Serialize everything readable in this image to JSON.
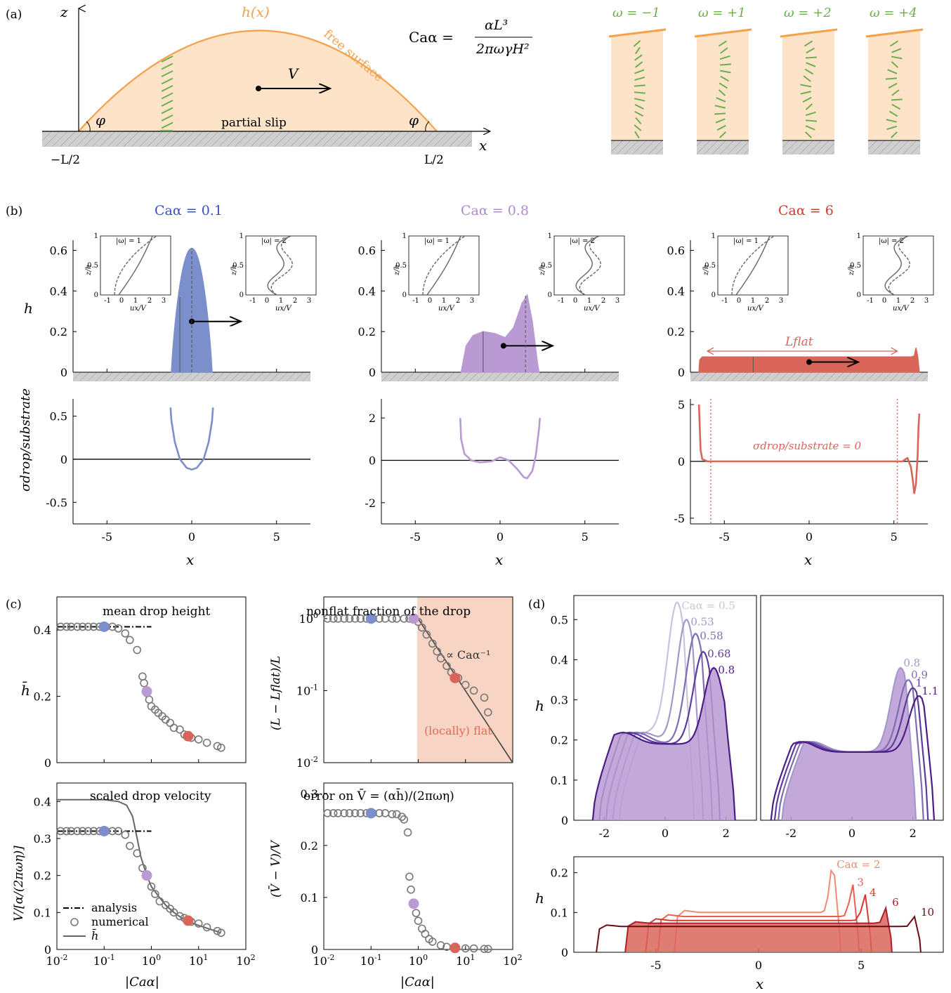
{
  "panel_labels": {
    "a": "(a)",
    "b": "(b)",
    "c": "(c)",
    "d": "(d)"
  },
  "colors": {
    "blue": "#7a8fcb",
    "purple": "#b99ad3",
    "red": "#d9655a",
    "orange": "#f5a04a",
    "fill": "#fde3c8",
    "green": "#6ab04c",
    "gray": "#666666",
    "darkpurple": "#4b1c84",
    "darkred": "#7a0b14"
  },
  "panel_a": {
    "z_label": "z",
    "x_label": "x",
    "h_label": "h(x)",
    "free_surface": "free surface",
    "V_label": "V",
    "slip_label": "partial slip",
    "phi": "φ",
    "left_end": "−L/2",
    "right_end": "L/2",
    "ca_formula_lhs": "Caα =",
    "ca_formula_num": "αL³",
    "ca_formula_den": "2πωγH²",
    "omegas": [
      "ω = −1",
      "ω = +1",
      "ω = +2",
      "ω = +4"
    ]
  },
  "chart_data": [
    {
      "type": "area",
      "id": "b-top-1",
      "title": "Caα = 0.1",
      "ylabel": "h",
      "xlim": [
        -7,
        7
      ],
      "ylim": [
        0,
        0.65
      ],
      "yticks": [
        "0",
        "0.2",
        "0.4",
        "0.6"
      ],
      "max_h": 0.61,
      "half_width": 1.2,
      "insets": [
        {
          "label": "|ω| = 1",
          "ylabel": "z/h",
          "xlabel": "ux/V"
        },
        {
          "label": "|ω| = 2",
          "ylabel": "z/h",
          "xlabel": "ux/V"
        }
      ],
      "inset_xticks": [
        "-1",
        "0",
        "1",
        "2",
        "3"
      ],
      "inset_yticks": [
        "0",
        "0.5",
        "1"
      ]
    },
    {
      "type": "area",
      "id": "b-top-2",
      "title": "Caα = 0.8",
      "ylim": [
        0,
        0.65
      ],
      "yticks": [
        "0",
        "0.2",
        "0.4",
        "0.6"
      ],
      "points": [
        [
          -2.3,
          0
        ],
        [
          -2.0,
          0.13
        ],
        [
          -1.6,
          0.18
        ],
        [
          -1.0,
          0.2
        ],
        [
          -0.3,
          0.19
        ],
        [
          0.3,
          0.17
        ],
        [
          0.8,
          0.22
        ],
        [
          1.3,
          0.34
        ],
        [
          1.6,
          0.38
        ],
        [
          1.9,
          0.25
        ],
        [
          2.2,
          0.05
        ],
        [
          2.3,
          0
        ]
      ]
    },
    {
      "type": "area",
      "id": "b-top-3",
      "title": "Caα = 6",
      "ylim": [
        0,
        0.65
      ],
      "yticks": [
        "0",
        "0.2",
        "0.4",
        "0.6"
      ],
      "flat_h": 0.075,
      "range": [
        -6.5,
        6.5
      ],
      "annotation": "Lflat"
    },
    {
      "type": "line",
      "id": "b-bot-1",
      "ylabel": "σdrop/substrate",
      "xlabel": "x",
      "xlim": [
        -7,
        7
      ],
      "ylim": [
        -0.75,
        0.7
      ],
      "xticks": [
        "-5",
        "0",
        "5"
      ],
      "yticks": [
        "0.5",
        "0",
        "-0.5"
      ],
      "x": [
        -1.25,
        -1.2,
        -1.0,
        -0.7,
        -0.3,
        0,
        0.3,
        0.7,
        1.0,
        1.2,
        1.25
      ],
      "values": [
        0.6,
        0.45,
        0.2,
        0.0,
        -0.1,
        -0.12,
        -0.1,
        0.0,
        0.2,
        0.45,
        0.6
      ]
    },
    {
      "type": "line",
      "id": "b-bot-2",
      "xlabel": "x",
      "xlim": [
        -7,
        7
      ],
      "ylim": [
        -3,
        2.9
      ],
      "xticks": [
        "-5",
        "0",
        "5"
      ],
      "yticks": [
        "2",
        "0",
        "-2"
      ],
      "x": [
        -2.35,
        -2.3,
        -2.1,
        -1.7,
        -1.2,
        -0.5,
        0,
        0.5,
        1.0,
        1.4,
        1.6,
        1.9,
        2.1,
        2.3,
        2.35
      ],
      "values": [
        2.0,
        1.0,
        0.3,
        0.0,
        -0.1,
        -0.05,
        0.15,
        0.0,
        -0.4,
        -0.8,
        -0.85,
        -0.5,
        0.2,
        1.5,
        2.0
      ]
    },
    {
      "type": "line",
      "id": "b-bot-3",
      "xlabel": "x",
      "annotation": "σdrop/substrate = 0",
      "xlim": [
        -7,
        7
      ],
      "ylim": [
        -5.5,
        5.5
      ],
      "xticks": [
        "-5",
        "0",
        "5"
      ],
      "yticks": [
        "5",
        "0",
        "-5"
      ],
      "dotted_x": [
        -5.8,
        5.2
      ],
      "x": [
        -6.5,
        -6.45,
        -6.4,
        -6.3,
        -6.0,
        -5.5,
        5.5,
        5.8,
        6.0,
        6.1,
        6.2,
        6.3,
        6.4,
        6.45,
        6.5
      ],
      "values": [
        5.0,
        3.0,
        1.0,
        0.2,
        0.0,
        0.0,
        0.0,
        0.3,
        -0.5,
        -1.5,
        -2.8,
        -2.0,
        0.5,
        3.0,
        4.2
      ]
    },
    {
      "type": "scatter",
      "id": "c1",
      "title": "mean drop height",
      "ylabel": "h̄",
      "xscale": "log",
      "xlim": [
        0.01,
        100
      ],
      "ylim": [
        0,
        0.5
      ],
      "yticks": [
        "0",
        "0.2",
        "0.4"
      ],
      "x": [
        0.012,
        0.016,
        0.02,
        0.027,
        0.035,
        0.046,
        0.06,
        0.08,
        0.11,
        0.15,
        0.2,
        0.28,
        0.35,
        0.5,
        0.65,
        0.7,
        0.8,
        0.9,
        1.0,
        1.2,
        1.4,
        1.7,
        2.0,
        2.5,
        3,
        4,
        5,
        7,
        10,
        15,
        25,
        30
      ],
      "values": [
        0.41,
        0.41,
        0.41,
        0.41,
        0.41,
        0.41,
        0.41,
        0.41,
        0.41,
        0.41,
        0.405,
        0.39,
        0.37,
        0.34,
        0.26,
        0.24,
        0.21,
        0.19,
        0.17,
        0.16,
        0.15,
        0.14,
        0.13,
        0.12,
        0.105,
        0.1,
        0.085,
        0.075,
        0.07,
        0.06,
        0.05,
        0.045
      ],
      "analysis": {
        "x": [
          0.01,
          1.0
        ],
        "y": 0.41
      },
      "highlights": [
        {
          "x": 0.1,
          "y": 0.41,
          "color": "#7a8fcb"
        },
        {
          "x": 0.8,
          "y": 0.215,
          "color": "#b99ad3"
        },
        {
          "x": 6,
          "y": 0.08,
          "color": "#d9655a"
        }
      ]
    },
    {
      "type": "scatter",
      "id": "c2",
      "title": "nonflat fraction of the drop",
      "ylabel": "(L − Lflat)/L",
      "xscale": "log",
      "yscale": "log",
      "xlim": [
        0.01,
        100
      ],
      "ylim": [
        0.01,
        2
      ],
      "yticks": [
        "10^0",
        "10^-1",
        "10^-2"
      ],
      "annotation_slope": "∝ Caα⁻¹",
      "annotation_flat": "(locally) flat",
      "shade_from_x": 0.95,
      "x": [
        0.012,
        0.016,
        0.02,
        0.027,
        0.035,
        0.046,
        0.06,
        0.08,
        0.11,
        0.15,
        0.2,
        0.28,
        0.35,
        0.5,
        0.65,
        0.8,
        1.0,
        1.2,
        1.5,
        2.0,
        2.5,
        3,
        4,
        5,
        7,
        10,
        15,
        25,
        30
      ],
      "values": [
        1,
        1,
        1,
        1,
        1,
        1,
        1,
        1,
        1,
        1,
        1,
        1,
        1,
        1,
        1,
        1,
        0.9,
        0.75,
        0.6,
        0.45,
        0.35,
        0.28,
        0.22,
        0.18,
        0.15,
        0.12,
        0.1,
        0.08,
        0.05
      ],
      "highlights": [
        {
          "x": 0.1,
          "y": 1,
          "color": "#7a8fcb"
        },
        {
          "x": 0.8,
          "y": 1,
          "color": "#b99ad3"
        },
        {
          "x": 6,
          "y": 0.15,
          "color": "#d9655a"
        }
      ]
    },
    {
      "type": "scatter",
      "id": "c3",
      "title": "scaled drop velocity",
      "ylabel": "V/[α/(2πωη)]",
      "xlabel": "|Caα|",
      "xscale": "log",
      "xlim": [
        0.01,
        100
      ],
      "ylim": [
        0,
        0.45
      ],
      "yticks": [
        "0",
        "0.1",
        "0.2",
        "0.3",
        "0.4"
      ],
      "xticks": [
        "10^-2",
        "10^-1",
        "10^0",
        "10^1",
        "10^2"
      ],
      "legend": [
        "analysis",
        "numerical",
        "h̄"
      ],
      "x": [
        0.012,
        0.016,
        0.02,
        0.027,
        0.035,
        0.046,
        0.06,
        0.08,
        0.11,
        0.15,
        0.2,
        0.28,
        0.35,
        0.5,
        0.65,
        0.8,
        1.0,
        1.2,
        1.5,
        2.0,
        2.5,
        3,
        4,
        5,
        7,
        10,
        15,
        25,
        30
      ],
      "values": [
        0.32,
        0.32,
        0.32,
        0.32,
        0.32,
        0.32,
        0.32,
        0.32,
        0.32,
        0.32,
        0.32,
        0.31,
        0.28,
        0.26,
        0.22,
        0.2,
        0.17,
        0.15,
        0.13,
        0.12,
        0.11,
        0.1,
        0.09,
        0.085,
        0.075,
        0.07,
        0.06,
        0.05,
        0.045
      ],
      "hbar_line": {
        "x": [
          0.01,
          0.05,
          0.1,
          0.2,
          0.3,
          0.4,
          0.5,
          0.6,
          0.8,
          1,
          1.5,
          2,
          3,
          5,
          10,
          30
        ],
        "y": [
          0.405,
          0.405,
          0.405,
          0.4,
          0.39,
          0.36,
          0.3,
          0.25,
          0.2,
          0.17,
          0.14,
          0.12,
          0.1,
          0.08,
          0.065,
          0.045
        ]
      },
      "analysis": {
        "x": [
          0.01,
          1.0
        ],
        "y": 0.32
      },
      "highlights": [
        {
          "x": 0.1,
          "y": 0.32,
          "color": "#7a8fcb"
        },
        {
          "x": 0.8,
          "y": 0.2,
          "color": "#b99ad3"
        },
        {
          "x": 6,
          "y": 0.078,
          "color": "#d9655a"
        }
      ]
    },
    {
      "type": "scatter",
      "id": "c4",
      "title": "error on V̄ = (αh̄)/(2πωη)",
      "ylabel": "(V̄ − V)/V",
      "xlabel": "|Caα|",
      "xscale": "log",
      "xlim": [
        0.01,
        100
      ],
      "ylim": [
        0,
        0.32
      ],
      "yticks": [
        "0",
        "0.1",
        "0.2",
        "0.3"
      ],
      "xticks": [
        "10^-2",
        "10^-1",
        "10^0",
        "10^1",
        "10^2"
      ],
      "x": [
        0.012,
        0.016,
        0.02,
        0.027,
        0.035,
        0.046,
        0.06,
        0.08,
        0.11,
        0.15,
        0.2,
        0.28,
        0.35,
        0.45,
        0.5,
        0.6,
        0.65,
        0.7,
        0.8,
        0.9,
        1.0,
        1.2,
        1.4,
        1.7,
        2,
        3,
        4,
        6,
        10,
        15,
        25,
        30
      ],
      "values": [
        0.262,
        0.262,
        0.262,
        0.262,
        0.262,
        0.262,
        0.262,
        0.262,
        0.262,
        0.262,
        0.262,
        0.26,
        0.26,
        0.255,
        0.25,
        0.225,
        0.14,
        0.115,
        0.09,
        0.07,
        0.055,
        0.04,
        0.03,
        0.02,
        0.015,
        0.008,
        0.005,
        0.003,
        0.002,
        0.002,
        0.001,
        0.001
      ],
      "highlights": [
        {
          "x": 0.1,
          "y": 0.262,
          "color": "#7a8fcb"
        },
        {
          "x": 0.8,
          "y": 0.088,
          "color": "#b99ad3"
        },
        {
          "x": 6,
          "y": 0.003,
          "color": "#d9655a"
        }
      ]
    },
    {
      "type": "line",
      "id": "d1",
      "ylabel": "h",
      "xlim": [
        -3,
        3
      ],
      "ylim": [
        0,
        0.56
      ],
      "xticks": [
        "-2",
        "0",
        "2"
      ],
      "yticks": [
        "0",
        "0.1",
        "0.2",
        "0.3",
        "0.4",
        "0.5"
      ],
      "series": [
        {
          "name": "Caα = 0.5",
          "peak": [
            0.4,
            0.54
          ],
          "color": "#c9c3df"
        },
        {
          "name": "0.53",
          "peak": [
            0.7,
            0.5
          ],
          "color": "#a497c9"
        },
        {
          "name": "0.58",
          "peak": [
            1.0,
            0.465
          ],
          "color": "#7f6db4"
        },
        {
          "name": "0.68",
          "peak": [
            1.25,
            0.42
          ],
          "color": "#5c3c9c"
        },
        {
          "name": "0.8",
          "peak": [
            1.6,
            0.38
          ],
          "color": "#4b1c84"
        }
      ]
    },
    {
      "type": "line",
      "id": "d2",
      "xlim": [
        -3,
        3
      ],
      "ylim": [
        0,
        0.56
      ],
      "xticks": [
        "-2",
        "0",
        "2"
      ],
      "series": [
        {
          "name": "0.8",
          "peak": [
            1.6,
            0.38
          ],
          "color": "#a497c9"
        },
        {
          "name": "0.9",
          "peak": [
            1.85,
            0.35
          ],
          "color": "#7f6db4"
        },
        {
          "name": "1",
          "peak": [
            2.0,
            0.33
          ],
          "color": "#5c3c9c"
        },
        {
          "name": "1.1",
          "peak": [
            2.2,
            0.31
          ],
          "color": "#4b1c84"
        }
      ]
    },
    {
      "type": "line",
      "id": "d3",
      "ylabel": "h",
      "xlabel": "x",
      "xlim": [
        -9,
        9
      ],
      "ylim": [
        0,
        0.24
      ],
      "xticks": [
        "-5",
        "0",
        "5"
      ],
      "yticks": [
        "0",
        "0.1",
        "0.2"
      ],
      "series": [
        {
          "name": "Caα = 2",
          "range": [
            -4.1,
            4.0
          ],
          "flat": 0.1,
          "peak": [
            3.6,
            0.215
          ],
          "color": "#f08a73"
        },
        {
          "name": "3",
          "range": [
            -4.9,
            4.9
          ],
          "flat": 0.09,
          "peak": [
            4.6,
            0.17
          ],
          "color": "#ea5e50"
        },
        {
          "name": "4",
          "range": [
            -5.5,
            5.5
          ],
          "flat": 0.08,
          "peak": [
            5.2,
            0.145
          ],
          "color": "#d13b34"
        },
        {
          "name": "6",
          "range": [
            -6.5,
            6.5
          ],
          "flat": 0.073,
          "peak": [
            6.3,
            0.12
          ],
          "color": "#a8212b"
        },
        {
          "name": "10",
          "range": [
            -7.9,
            7.9
          ],
          "flat": 0.065,
          "peak": [
            7.7,
            0.095
          ],
          "color": "#6e0a14"
        }
      ]
    }
  ]
}
